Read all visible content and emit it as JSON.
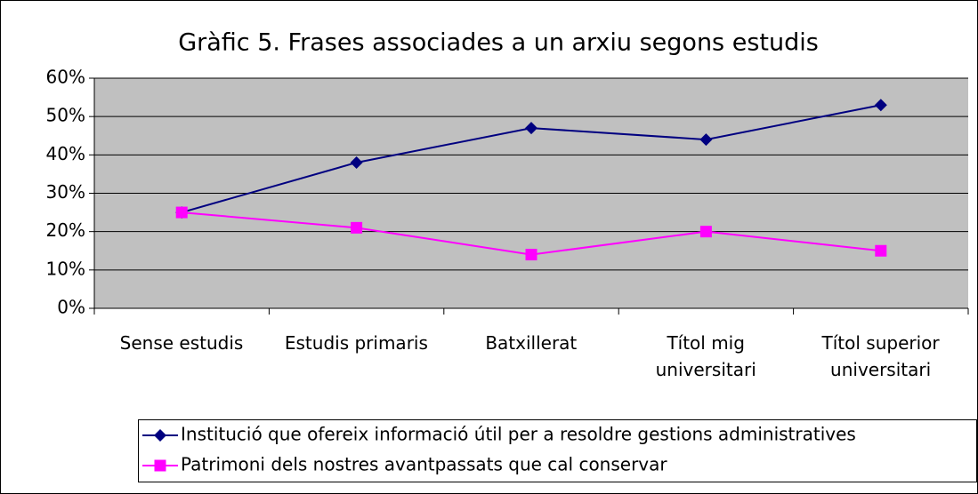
{
  "chart_data": {
    "type": "line",
    "title": "Gràfic 5. Frases associades a un arxiu segons estudis",
    "categories": [
      "Sense estudis",
      "Estudis primaris",
      "Batxillerat",
      "Títol mig universitari",
      "Títol superior universitari"
    ],
    "series": [
      {
        "name": "Institució que ofereix informació útil per a resoldre gestions administratives",
        "color": "#000080",
        "marker": "diamond",
        "values": [
          25,
          38,
          47,
          44,
          53
        ]
      },
      {
        "name": "Patrimoni dels nostres avantpassats que cal conservar",
        "color": "#ff00ff",
        "marker": "square",
        "values": [
          25,
          21,
          14,
          20,
          15
        ]
      }
    ],
    "ylim": [
      0,
      60
    ],
    "yticks": [
      {
        "value": 0,
        "label": "0%"
      },
      {
        "value": 10,
        "label": "10%"
      },
      {
        "value": 20,
        "label": "20%"
      },
      {
        "value": 30,
        "label": "30%"
      },
      {
        "value": 40,
        "label": "40%"
      },
      {
        "value": 50,
        "label": "50%"
      },
      {
        "value": 60,
        "label": "60%"
      }
    ],
    "grid": true,
    "legend": "bottom"
  }
}
